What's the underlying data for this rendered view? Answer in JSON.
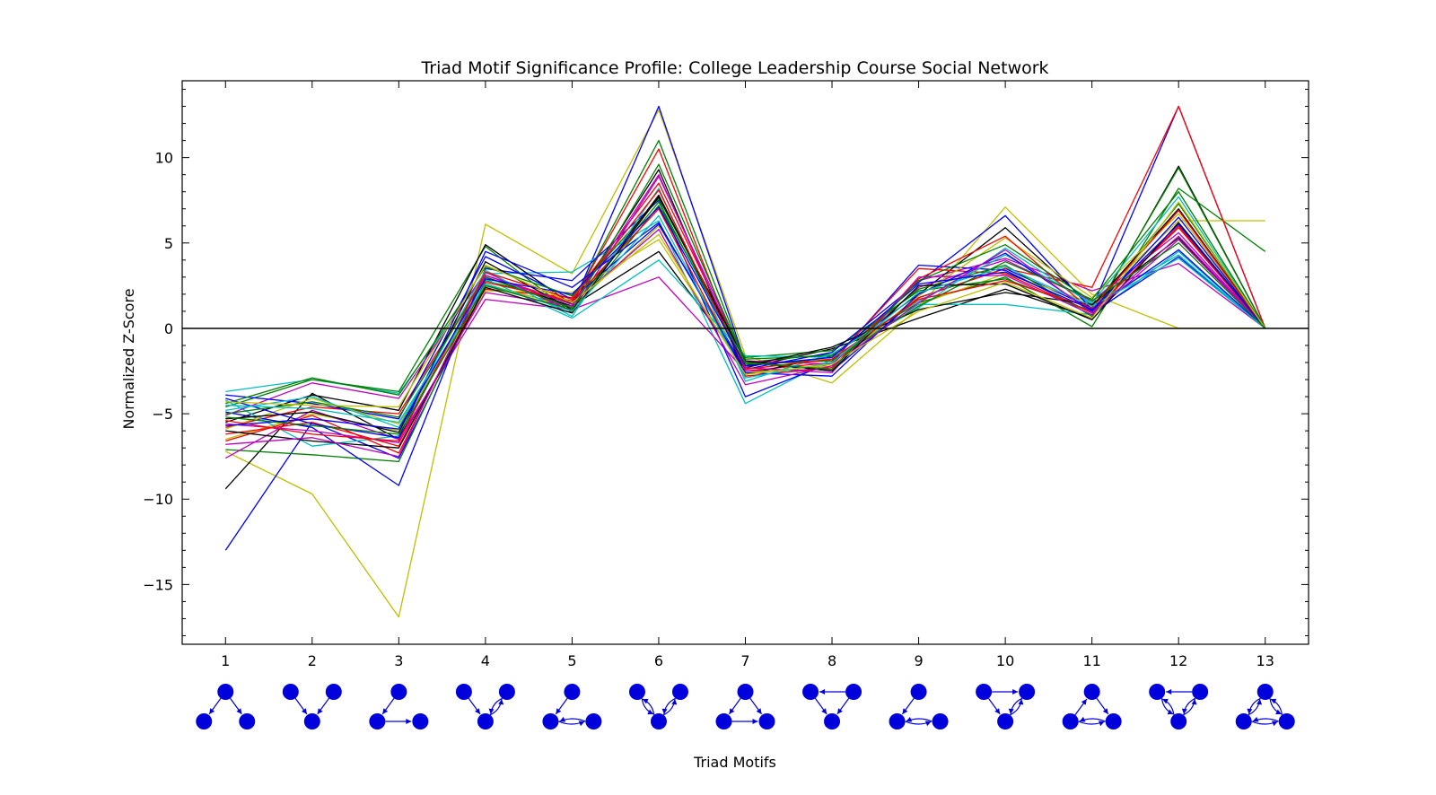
{
  "chart_data": {
    "type": "line",
    "title": "Triad Motif Significance Profile: College Leadership Course Social Network",
    "xlabel": "Triad Motifs",
    "ylabel": "Normalized Z-Score",
    "x": [
      1,
      2,
      3,
      4,
      5,
      6,
      7,
      8,
      9,
      10,
      11,
      12,
      13
    ],
    "xlim": [
      0.5,
      13.5
    ],
    "ylim": [
      -18.5,
      14.5
    ],
    "yticks": [
      10,
      5,
      0,
      -5,
      -10,
      -15
    ],
    "ytick_labels": [
      "10",
      "5",
      "0",
      "−5",
      "−10",
      "−15"
    ],
    "xtick_labels": [
      "1",
      "2",
      "3",
      "4",
      "5",
      "6",
      "7",
      "8",
      "9",
      "10",
      "11",
      "12",
      "13"
    ],
    "zero_line": true,
    "grid": false,
    "legend": "none",
    "motif_icons": [
      "triad-motif-1-icon",
      "triad-motif-2-icon",
      "triad-motif-3-icon",
      "triad-motif-4-icon",
      "triad-motif-5-icon",
      "triad-motif-6-icon",
      "triad-motif-7-icon",
      "triad-motif-8-icon",
      "triad-motif-9-icon",
      "triad-motif-10-icon",
      "triad-motif-11-icon",
      "triad-motif-12-icon",
      "triad-motif-13-icon"
    ],
    "motif_color": "#0000dd",
    "series": [
      {
        "color": "#bfbf00",
        "values": [
          -7.2,
          -9.7,
          -16.9,
          6.1,
          3.2,
          12.8,
          -1.6,
          -3.2,
          1.2,
          7.1,
          2.0,
          0.0,
          0.0
        ]
      },
      {
        "color": "#0000ff",
        "values": [
          -13.0,
          -5.5,
          -7.6,
          2.5,
          1.3,
          13.0,
          -2.0,
          -2.5,
          1.8,
          3.5,
          1.2,
          13.0,
          0.0
        ]
      },
      {
        "color": "#000000",
        "values": [
          -9.4,
          -3.8,
          -6.5,
          3.0,
          1.3,
          4.5,
          -2.3,
          -1.2,
          0.6,
          2.3,
          0.6,
          9.5,
          0.0
        ]
      },
      {
        "color": "#008000",
        "values": [
          -7.1,
          -7.4,
          -7.8,
          2.8,
          1.5,
          11.0,
          -2.0,
          -1.5,
          1.5,
          3.0,
          0.1,
          8.2,
          4.5
        ]
      },
      {
        "color": "#bfbf00",
        "values": [
          -6.5,
          -5.0,
          -6.0,
          2.6,
          1.2,
          6.0,
          -2.1,
          -1.8,
          1.4,
          3.2,
          1.5,
          6.3,
          6.3
        ]
      },
      {
        "color": "#ff0000",
        "values": [
          -5.8,
          -4.6,
          -5.0,
          3.1,
          1.5,
          10.5,
          -2.5,
          -2.0,
          1.8,
          3.5,
          2.4,
          13.0,
          0.0
        ]
      },
      {
        "color": "#00bfbf",
        "values": [
          -3.7,
          -3.0,
          -3.8,
          3.2,
          3.3,
          6.3,
          -4.4,
          -1.8,
          1.4,
          1.4,
          0.8,
          4.5,
          0.0
        ]
      },
      {
        "color": "#bf00bf",
        "values": [
          -7.6,
          -4.8,
          -6.5,
          1.7,
          1.1,
          3.0,
          -2.5,
          -2.4,
          2.8,
          4.1,
          2.2,
          3.8,
          0.0
        ]
      },
      {
        "color": "#0000ff",
        "values": [
          -4.9,
          -5.8,
          -9.2,
          3.5,
          2.8,
          7.5,
          -4.0,
          -2.0,
          3.7,
          3.4,
          0.9,
          4.2,
          0.0
        ]
      },
      {
        "color": "#008000",
        "values": [
          -4.6,
          -3.0,
          -3.7,
          4.8,
          0.9,
          7.2,
          -1.7,
          -1.3,
          2.2,
          2.9,
          1.0,
          7.3,
          0.0
        ]
      },
      {
        "color": "#000000",
        "values": [
          -5.5,
          -3.9,
          -4.8,
          4.9,
          1.4,
          9.3,
          -2.7,
          -1.6,
          2.0,
          5.9,
          1.3,
          7.0,
          0.0
        ]
      },
      {
        "color": "#ff0000",
        "values": [
          -6.2,
          -5.5,
          -6.9,
          2.3,
          1.8,
          8.5,
          -2.0,
          -1.9,
          3.5,
          3.2,
          0.9,
          6.0,
          0.0
        ]
      },
      {
        "color": "#00bfbf",
        "values": [
          -4.2,
          -6.9,
          -6.3,
          2.9,
          0.6,
          4.0,
          -1.6,
          -1.7,
          1.2,
          4.7,
          1.4,
          4.3,
          0.0
        ]
      },
      {
        "color": "#bf00bf",
        "values": [
          -5.1,
          -3.2,
          -4.1,
          3.3,
          1.0,
          8.9,
          -1.9,
          -2.1,
          2.4,
          4.0,
          1.6,
          5.6,
          0.0
        ]
      },
      {
        "color": "#0000ff",
        "values": [
          -3.9,
          -4.4,
          -5.3,
          4.2,
          1.7,
          6.1,
          -2.4,
          -1.4,
          2.7,
          6.6,
          1.1,
          4.6,
          0.0
        ]
      },
      {
        "color": "#bfbf00",
        "values": [
          -5.9,
          -4.1,
          -5.6,
          2.2,
          2.1,
          5.2,
          -2.6,
          -2.2,
          1.9,
          5.3,
          1.8,
          6.7,
          0.0
        ]
      },
      {
        "color": "#008000",
        "values": [
          -4.4,
          -2.9,
          -3.9,
          3.6,
          1.9,
          7.6,
          -1.8,
          -1.6,
          2.3,
          3.7,
          0.7,
          9.4,
          0.0
        ]
      },
      {
        "color": "#000000",
        "values": [
          -5.3,
          -4.9,
          -6.1,
          3.9,
          1.1,
          7.8,
          -2.2,
          -1.1,
          1.1,
          2.1,
          1.4,
          5.3,
          0.0
        ]
      },
      {
        "color": "#ff0000",
        "values": [
          -6.6,
          -5.1,
          -7.3,
          2.7,
          1.6,
          7.0,
          -2.8,
          -2.3,
          2.9,
          5.4,
          1.0,
          5.9,
          0.0
        ]
      },
      {
        "color": "#00bfbf",
        "values": [
          -4.8,
          -4.0,
          -5.8,
          3.4,
          0.7,
          8.2,
          -3.1,
          -1.5,
          1.6,
          4.3,
          1.5,
          7.7,
          0.0
        ]
      },
      {
        "color": "#bf00bf",
        "values": [
          -5.6,
          -6.0,
          -6.7,
          2.1,
          1.3,
          9.0,
          -2.3,
          -2.6,
          3.0,
          3.1,
          0.8,
          5.2,
          0.0
        ]
      },
      {
        "color": "#0000ff",
        "values": [
          -4.1,
          -5.6,
          -6.4,
          4.5,
          2.4,
          6.2,
          -2.6,
          -2.8,
          2.0,
          4.4,
          1.0,
          6.5,
          0.0
        ]
      },
      {
        "color": "#008000",
        "values": [
          -5.0,
          -4.3,
          -5.2,
          3.0,
          1.2,
          7.4,
          -2.1,
          -1.9,
          1.3,
          3.9,
          1.7,
          8.0,
          0.0
        ]
      },
      {
        "color": "#000000",
        "values": [
          -6.0,
          -6.6,
          -7.0,
          2.4,
          0.9,
          7.7,
          -1.9,
          -2.5,
          2.5,
          2.6,
          0.5,
          6.2,
          0.0
        ]
      },
      {
        "color": "#ff0000",
        "values": [
          -5.4,
          -6.2,
          -6.6,
          3.3,
          1.7,
          8.1,
          -2.4,
          -1.8,
          1.7,
          2.8,
          1.2,
          6.9,
          0.0
        ]
      },
      {
        "color": "#00bfbf",
        "values": [
          -4.5,
          -4.7,
          -5.5,
          2.6,
          1.0,
          6.6,
          -2.9,
          -2.0,
          2.1,
          3.6,
          1.3,
          4.1,
          0.0
        ]
      },
      {
        "color": "#bf00bf",
        "values": [
          -6.8,
          -6.4,
          -7.5,
          3.1,
          1.4,
          5.8,
          -3.3,
          -2.2,
          1.5,
          4.6,
          0.9,
          5.4,
          0.0
        ]
      },
      {
        "color": "#0000ff",
        "values": [
          -5.7,
          -5.3,
          -5.9,
          2.9,
          2.0,
          7.1,
          -2.2,
          -1.7,
          2.6,
          3.3,
          1.1,
          6.1,
          0.0
        ]
      },
      {
        "color": "#bfbf00",
        "values": [
          -4.3,
          -4.5,
          -4.6,
          3.7,
          1.5,
          5.5,
          -2.7,
          -2.1,
          1.0,
          2.7,
          0.6,
          7.4,
          0.0
        ]
      },
      {
        "color": "#008000",
        "values": [
          -5.2,
          -5.7,
          -6.2,
          2.5,
          1.1,
          9.6,
          -2.0,
          -2.4,
          2.8,
          4.9,
          1.6,
          5.0,
          0.0
        ]
      }
    ]
  }
}
